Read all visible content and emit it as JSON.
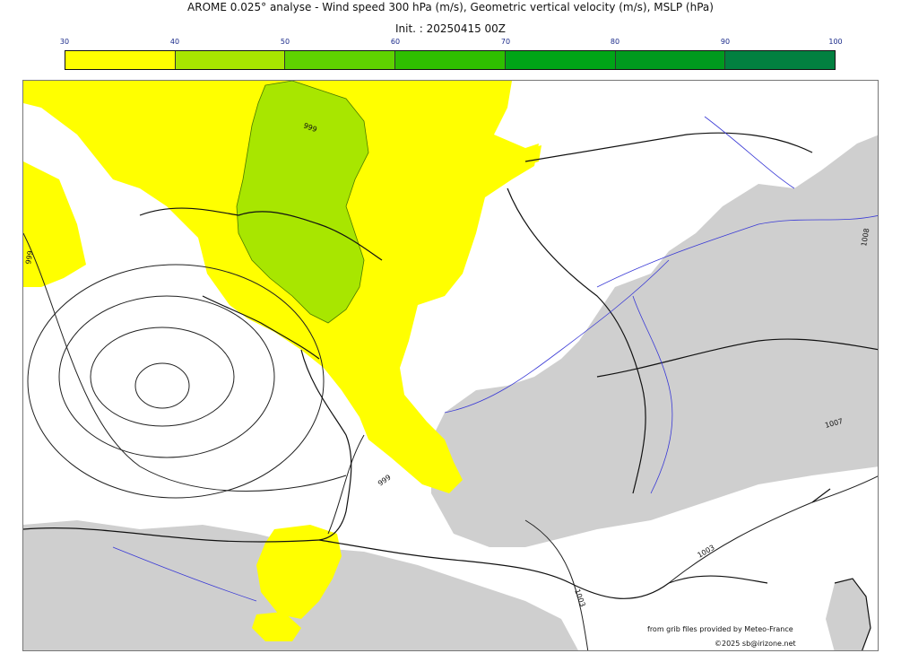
{
  "header": {
    "title": "AROME 0.025° analyse - Wind speed 300 hPa (m/s), Geometric vertical velocity (m/s), MSLP (hPa)",
    "init": "Init. : 20250415 00Z"
  },
  "colorbar": {
    "ticks": [
      "30",
      "40",
      "50",
      "60",
      "70",
      "80",
      "90",
      "100"
    ],
    "colors": [
      "#ffff00",
      "#a8e600",
      "#5fd200",
      "#2fbf00",
      "#00a517",
      "#009a1e",
      "#028040",
      "#0b7449"
    ]
  },
  "map": {
    "fill_colors": {
      "wind_30_40": "#ffff00",
      "wind_40_50": "#a8e600",
      "vertical_velocity_shading": "#cfcfcf",
      "rivers": "#3a3ad6",
      "borders": "#111111"
    },
    "isobar_labels": [
      "999",
      "999",
      "999",
      "1003",
      "1003",
      "1007",
      "1008"
    ]
  },
  "credits": {
    "line1": "from grib files provided by Meteo-France",
    "line2": "©2025 sb@irizone.net"
  }
}
